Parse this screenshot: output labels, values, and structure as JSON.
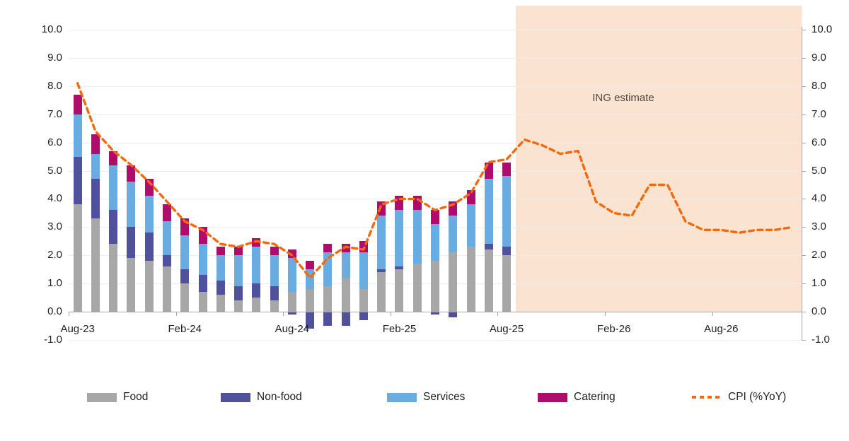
{
  "annotation_note": "",
  "chart_data": {
    "type": "combo-stacked-bar-line",
    "title": "",
    "annotation": "ING estimate",
    "xlabel": "",
    "ylabel": "",
    "ylim": [
      -1.0,
      10.0
    ],
    "y_step": 1.0,
    "y_tick_labels": [
      "10.0",
      "9.0",
      "8.0",
      "7.0",
      "6.0",
      "5.0",
      "4.0",
      "3.0",
      "2.0",
      "1.0",
      "0.0",
      "-1.0"
    ],
    "x_tick_labels": [
      "Aug-23",
      "Feb-24",
      "Aug-24",
      "Feb-25",
      "Aug-25",
      "Feb-26",
      "Aug-26"
    ],
    "x_tick_month_indices": [
      0,
      6,
      12,
      18,
      24,
      30,
      36
    ],
    "months": [
      "Aug-23",
      "Sep-23",
      "Oct-23",
      "Nov-23",
      "Dec-23",
      "Jan-24",
      "Feb-24",
      "Mar-24",
      "Apr-24",
      "May-24",
      "Jun-24",
      "Jul-24",
      "Aug-24",
      "Sep-24",
      "Oct-24",
      "Nov-24",
      "Dec-24",
      "Jan-25",
      "Feb-25",
      "Mar-25",
      "Apr-25",
      "May-25",
      "Jun-25",
      "Jul-25",
      "Aug-25",
      "Sep-25",
      "Oct-25",
      "Nov-25",
      "Dec-25",
      "Jan-26",
      "Feb-26",
      "Mar-26",
      "Apr-26",
      "May-26",
      "Jun-26",
      "Jul-26",
      "Aug-26",
      "Sep-26",
      "Oct-26",
      "Nov-26",
      "Dec-26"
    ],
    "forecast": {
      "label": "ING estimate",
      "start_month": "Sep-25",
      "start_month_index": 25,
      "shade_color": "#fbe3d2"
    },
    "bar_series": [
      {
        "name": "Food",
        "color": "#a7a7a7",
        "values": [
          3.8,
          3.3,
          2.4,
          1.9,
          1.8,
          1.6,
          1.0,
          0.7,
          0.6,
          0.4,
          0.5,
          0.4,
          0.7,
          0.8,
          0.9,
          1.2,
          0.8,
          1.4,
          1.5,
          1.7,
          1.8,
          2.1,
          2.3,
          2.2,
          2.0
        ]
      },
      {
        "name": "Non-food",
        "color": "#4f519b",
        "values": [
          1.7,
          1.4,
          1.2,
          1.1,
          1.0,
          0.4,
          0.5,
          0.6,
          0.5,
          0.5,
          0.5,
          0.5,
          -0.1,
          -0.6,
          -0.5,
          -0.5,
          -0.3,
          0.1,
          0.1,
          0.0,
          -0.1,
          -0.2,
          0.0,
          0.2,
          0.3
        ]
      },
      {
        "name": "Services",
        "color": "#69ace1",
        "values": [
          1.5,
          0.9,
          1.6,
          1.6,
          1.3,
          1.2,
          1.2,
          1.1,
          0.9,
          1.1,
          1.3,
          1.1,
          1.2,
          0.7,
          1.2,
          0.9,
          1.3,
          1.9,
          2.0,
          1.9,
          1.3,
          1.3,
          1.5,
          2.3,
          2.5
        ]
      },
      {
        "name": "Catering",
        "color": "#ad0e6b",
        "values": [
          0.7,
          0.7,
          0.5,
          0.6,
          0.6,
          0.6,
          0.6,
          0.6,
          0.3,
          0.3,
          0.3,
          0.3,
          0.3,
          0.3,
          0.3,
          0.3,
          0.4,
          0.5,
          0.5,
          0.5,
          0.5,
          0.5,
          0.5,
          0.6,
          0.5
        ]
      }
    ],
    "line_series": {
      "name": "CPI (%YoY)",
      "color": "#f4690b",
      "style": "dashed",
      "values": [
        8.1,
        6.4,
        5.7,
        5.2,
        4.6,
        3.9,
        3.2,
        2.9,
        2.4,
        2.3,
        2.5,
        2.4,
        2.0,
        1.2,
        1.9,
        2.3,
        2.2,
        3.8,
        4.0,
        4.0,
        3.6,
        3.8,
        4.2,
        5.3,
        5.4,
        6.1,
        5.9,
        5.6,
        5.7,
        3.9,
        3.5,
        3.4,
        4.5,
        4.5,
        3.2,
        2.9,
        2.9,
        2.8,
        2.9,
        2.9,
        3.0
      ]
    },
    "legend": [
      {
        "label": "Food",
        "swatch": "bar",
        "color": "#a7a7a7"
      },
      {
        "label": "Non-food",
        "swatch": "bar",
        "color": "#4f519b"
      },
      {
        "label": "Services",
        "swatch": "bar",
        "color": "#69ace1"
      },
      {
        "label": "Catering",
        "swatch": "bar",
        "color": "#ad0e6b"
      },
      {
        "label": "CPI (%YoY)",
        "swatch": "dash",
        "color": "#f4690b"
      }
    ],
    "grid": true,
    "legend_position": "bottom"
  }
}
